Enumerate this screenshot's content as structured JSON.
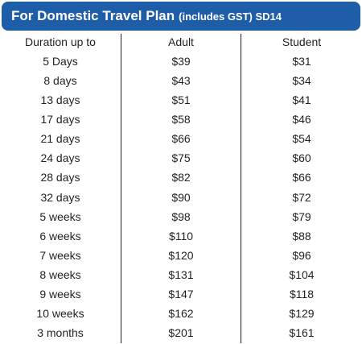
{
  "header": {
    "title": "For Domestic Travel Plan",
    "subtitle": "(includes GST) SD14"
  },
  "table": {
    "columns": [
      "Duration up to",
      "Adult",
      "Student"
    ],
    "rows": [
      [
        "5 Days",
        "$39",
        "$31"
      ],
      [
        "8 days",
        "$43",
        "$34"
      ],
      [
        "13 days",
        "$51",
        "$41"
      ],
      [
        "17 days",
        "$58",
        "$46"
      ],
      [
        "21 days",
        "$66",
        "$54"
      ],
      [
        "24 days",
        "$75",
        "$60"
      ],
      [
        "28 days",
        "$82",
        "$66"
      ],
      [
        "32 days",
        "$90",
        "$72"
      ],
      [
        "5 weeks",
        "$98",
        "$79"
      ],
      [
        "6 weeks",
        "$110",
        "$88"
      ],
      [
        "7 weeks",
        "$120",
        "$96"
      ],
      [
        "8 weeks",
        "$131",
        "$104"
      ],
      [
        "9 weeks",
        "$147",
        "$118"
      ],
      [
        "10 weeks",
        "$162",
        "$129"
      ],
      [
        "3 months",
        "$201",
        "$161"
      ]
    ]
  }
}
